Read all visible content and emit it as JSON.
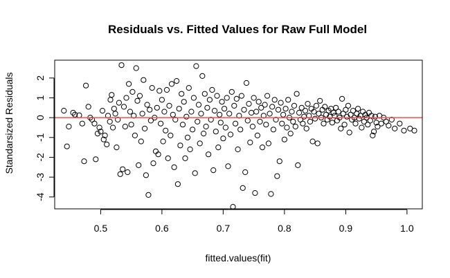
{
  "chart_data": {
    "type": "scatter",
    "title": "Residuals vs. Fitted Values for Raw Full Model",
    "xlabel": "fitted.values(fit)",
    "ylabel": "Standarsized Residuals",
    "xlim": [
      0.425,
      1.025
    ],
    "ylim": [
      -4.6,
      2.9
    ],
    "xticks": [
      0.5,
      0.6,
      0.7,
      0.8,
      0.9,
      1.0
    ],
    "xtick_labels": [
      "0.5",
      "0.6",
      "0.7",
      "0.8",
      "0.9",
      "1.0"
    ],
    "yticks": [
      -4,
      -3,
      -2,
      -1,
      0,
      1,
      2
    ],
    "ytick_labels": [
      "-4",
      "-3",
      "-2",
      "-1",
      "0",
      "1",
      "2"
    ],
    "reference_line": {
      "y": 0,
      "color": "#ff4d4d"
    },
    "marker": "open-circle",
    "grid": false,
    "points": [
      [
        0.44,
        0.35
      ],
      [
        0.445,
        -1.45
      ],
      [
        0.448,
        -0.45
      ],
      [
        0.455,
        0.25
      ],
      [
        0.458,
        0.15
      ],
      [
        0.465,
        0.12
      ],
      [
        0.47,
        -0.3
      ],
      [
        0.473,
        -2.2
      ],
      [
        0.476,
        1.62
      ],
      [
        0.48,
        0.55
      ],
      [
        0.483,
        0.0
      ],
      [
        0.486,
        -0.1
      ],
      [
        0.49,
        -0.3
      ],
      [
        0.492,
        -2.1
      ],
      [
        0.495,
        -0.8
      ],
      [
        0.498,
        -0.5
      ],
      [
        0.5,
        -0.7
      ],
      [
        0.503,
        0.35
      ],
      [
        0.505,
        -1.1
      ],
      [
        0.507,
        -0.9
      ],
      [
        0.51,
        -1.35
      ],
      [
        0.512,
        0.1
      ],
      [
        0.515,
        -0.2
      ],
      [
        0.516,
        0.9
      ],
      [
        0.518,
        1.15
      ],
      [
        0.52,
        -0.5
      ],
      [
        0.522,
        0.45
      ],
      [
        0.524,
        0.2
      ],
      [
        0.526,
        -1.5
      ],
      [
        0.528,
        -0.1
      ],
      [
        0.53,
        0.75
      ],
      [
        0.532,
        -2.85
      ],
      [
        0.534,
        2.65
      ],
      [
        0.536,
        -2.6
      ],
      [
        0.538,
        0.55
      ],
      [
        0.54,
        -0.45
      ],
      [
        0.542,
        1.0
      ],
      [
        0.544,
        -2.75
      ],
      [
        0.546,
        1.7
      ],
      [
        0.548,
        0.3
      ],
      [
        0.55,
        -0.35
      ],
      [
        0.552,
        1.3
      ],
      [
        0.554,
        0.1
      ],
      [
        0.556,
        -0.9
      ],
      [
        0.558,
        2.5
      ],
      [
        0.56,
        0.85
      ],
      [
        0.562,
        -2.4
      ],
      [
        0.564,
        1.1
      ],
      [
        0.566,
        -1.2
      ],
      [
        0.568,
        0.2
      ],
      [
        0.57,
        1.9
      ],
      [
        0.572,
        -0.55
      ],
      [
        0.574,
        -2.9
      ],
      [
        0.576,
        0.65
      ],
      [
        0.578,
        -3.9
      ],
      [
        0.58,
        0.4
      ],
      [
        0.582,
        -0.15
      ],
      [
        0.584,
        1.5
      ],
      [
        0.586,
        -2.3
      ],
      [
        0.588,
        0.0
      ],
      [
        0.59,
        -1.7
      ],
      [
        0.592,
        0.5
      ],
      [
        0.594,
        -1.85
      ],
      [
        0.596,
        1.35
      ],
      [
        0.598,
        -0.3
      ],
      [
        0.6,
        0.9
      ],
      [
        0.602,
        -1.2
      ],
      [
        0.604,
        0.3
      ],
      [
        0.606,
        -0.65
      ],
      [
        0.608,
        1.4
      ],
      [
        0.61,
        -2.05
      ],
      [
        0.612,
        0.6
      ],
      [
        0.614,
        -0.9
      ],
      [
        0.616,
        1.7
      ],
      [
        0.618,
        0.15
      ],
      [
        0.62,
        -2.5
      ],
      [
        0.622,
        -0.1
      ],
      [
        0.624,
        1.85
      ],
      [
        0.626,
        -3.35
      ],
      [
        0.628,
        0.45
      ],
      [
        0.63,
        -1.4
      ],
      [
        0.632,
        1.2
      ],
      [
        0.634,
        -0.35
      ],
      [
        0.636,
        0.8
      ],
      [
        0.638,
        -2.05
      ],
      [
        0.64,
        0.05
      ],
      [
        0.642,
        -1.0
      ],
      [
        0.644,
        1.5
      ],
      [
        0.646,
        -1.6
      ],
      [
        0.648,
        0.3
      ],
      [
        0.65,
        -0.6
      ],
      [
        0.652,
        1.0
      ],
      [
        0.654,
        -2.8
      ],
      [
        0.656,
        2.6
      ],
      [
        0.658,
        -0.2
      ],
      [
        0.66,
        0.65
      ],
      [
        0.662,
        -1.3
      ],
      [
        0.664,
        0.2
      ],
      [
        0.666,
        2.1
      ],
      [
        0.668,
        -0.8
      ],
      [
        0.67,
        1.2
      ],
      [
        0.672,
        -0.45
      ],
      [
        0.674,
        0.5
      ],
      [
        0.676,
        -1.85
      ],
      [
        0.678,
        0.9
      ],
      [
        0.68,
        -0.1
      ],
      [
        0.682,
        1.4
      ],
      [
        0.684,
        -2.65
      ],
      [
        0.686,
        0.35
      ],
      [
        0.688,
        -0.7
      ],
      [
        0.69,
        1.1
      ],
      [
        0.692,
        -1.5
      ],
      [
        0.694,
        0.15
      ],
      [
        0.696,
        -0.25
      ],
      [
        0.698,
        0.8
      ],
      [
        0.7,
        -1.05
      ],
      [
        0.702,
        0.45
      ],
      [
        0.704,
        -0.5
      ],
      [
        0.706,
        1.0
      ],
      [
        0.708,
        -2.45
      ],
      [
        0.71,
        0.2
      ],
      [
        0.712,
        -0.85
      ],
      [
        0.714,
        1.3
      ],
      [
        0.716,
        -4.5
      ],
      [
        0.718,
        0.6
      ],
      [
        0.72,
        -0.3
      ],
      [
        0.722,
        0.95
      ],
      [
        0.724,
        -1.6
      ],
      [
        0.726,
        0.1
      ],
      [
        0.728,
        -0.6
      ],
      [
        0.73,
        1.1
      ],
      [
        0.732,
        -3.55
      ],
      [
        0.734,
        0.4
      ],
      [
        0.736,
        -2.75
      ],
      [
        0.738,
        1.75
      ],
      [
        0.74,
        -0.15
      ],
      [
        0.742,
        0.7
      ],
      [
        0.744,
        -1.25
      ],
      [
        0.746,
        0.25
      ],
      [
        0.748,
        -0.45
      ],
      [
        0.75,
        1.0
      ],
      [
        0.752,
        -3.8
      ],
      [
        0.754,
        0.3
      ],
      [
        0.756,
        -0.9
      ],
      [
        0.758,
        0.8
      ],
      [
        0.76,
        -0.2
      ],
      [
        0.762,
        0.5
      ],
      [
        0.764,
        -1.5
      ],
      [
        0.766,
        0.1
      ],
      [
        0.768,
        0.65
      ],
      [
        0.77,
        -0.35
      ],
      [
        0.772,
        1.1
      ],
      [
        0.774,
        -1.3
      ],
      [
        0.776,
        0.2
      ],
      [
        0.778,
        -3.85
      ],
      [
        0.78,
        0.55
      ],
      [
        0.782,
        -0.6
      ],
      [
        0.784,
        0.9
      ],
      [
        0.786,
        -0.1
      ],
      [
        0.788,
        -2.95
      ],
      [
        0.79,
        0.4
      ],
      [
        0.792,
        -2.2
      ],
      [
        0.794,
        0.75
      ],
      [
        0.796,
        -0.3
      ],
      [
        0.798,
        0.15
      ],
      [
        0.8,
        -1.1
      ],
      [
        0.802,
        0.45
      ],
      [
        0.804,
        -0.5
      ],
      [
        0.806,
        0.9
      ],
      [
        0.808,
        0.0
      ],
      [
        0.81,
        -0.8
      ],
      [
        0.812,
        0.3
      ],
      [
        0.814,
        -0.2
      ],
      [
        0.816,
        0.6
      ],
      [
        0.818,
        -0.45
      ],
      [
        0.82,
        1.2
      ],
      [
        0.822,
        -2.4
      ],
      [
        0.824,
        0.25
      ],
      [
        0.826,
        -0.1
      ],
      [
        0.828,
        0.5
      ],
      [
        0.83,
        -0.3
      ],
      [
        0.832,
        0.05
      ],
      [
        0.834,
        0.35
      ],
      [
        0.836,
        -0.55
      ],
      [
        0.838,
        0.7
      ],
      [
        0.84,
        0.1
      ],
      [
        0.842,
        -0.2
      ],
      [
        0.844,
        0.45
      ],
      [
        0.846,
        -1.2
      ],
      [
        0.848,
        0.3
      ],
      [
        0.85,
        -0.05
      ],
      [
        0.852,
        0.6
      ],
      [
        0.854,
        -1.3
      ],
      [
        0.856,
        0.2
      ],
      [
        0.858,
        0.85
      ],
      [
        0.86,
        0.0
      ],
      [
        0.862,
        0.4
      ],
      [
        0.864,
        -0.3
      ],
      [
        0.866,
        0.55
      ],
      [
        0.868,
        0.15
      ],
      [
        0.87,
        -0.1
      ],
      [
        0.872,
        0.35
      ],
      [
        0.874,
        0.05
      ],
      [
        0.876,
        0.45
      ],
      [
        0.878,
        -0.25
      ],
      [
        0.88,
        0.25
      ],
      [
        0.882,
        0.1
      ],
      [
        0.884,
        0.5
      ],
      [
        0.886,
        -0.15
      ],
      [
        0.888,
        0.3
      ],
      [
        0.89,
        0.0
      ],
      [
        0.892,
        -0.55
      ],
      [
        0.894,
        0.95
      ],
      [
        0.896,
        0.2
      ],
      [
        0.898,
        -0.35
      ],
      [
        0.9,
        0.4
      ],
      [
        0.902,
        0.05
      ],
      [
        0.904,
        0.6
      ],
      [
        0.906,
        -0.75
      ],
      [
        0.908,
        0.15
      ],
      [
        0.91,
        -0.1
      ],
      [
        0.912,
        0.35
      ],
      [
        0.914,
        0.0
      ],
      [
        0.916,
        -0.3
      ],
      [
        0.918,
        0.2
      ],
      [
        0.92,
        0.45
      ],
      [
        0.922,
        -0.05
      ],
      [
        0.924,
        0.1
      ],
      [
        0.926,
        -0.5
      ],
      [
        0.928,
        0.3
      ],
      [
        0.93,
        -0.2
      ],
      [
        0.932,
        0.15
      ],
      [
        0.934,
        0.0
      ],
      [
        0.936,
        -0.35
      ],
      [
        0.938,
        0.25
      ],
      [
        0.94,
        -0.15
      ],
      [
        0.942,
        0.1
      ],
      [
        0.944,
        -0.9
      ],
      [
        0.946,
        -0.7
      ],
      [
        0.948,
        0.05
      ],
      [
        0.95,
        -0.25
      ],
      [
        0.952,
        -0.45
      ],
      [
        0.955,
        0.1
      ],
      [
        0.958,
        -0.3
      ],
      [
        0.962,
        0.0
      ],
      [
        0.966,
        -0.2
      ],
      [
        0.97,
        -0.4
      ],
      [
        0.975,
        -0.1
      ],
      [
        0.98,
        -0.55
      ],
      [
        0.988,
        -0.3
      ],
      [
        0.995,
        -0.65
      ],
      [
        1.005,
        -0.55
      ],
      [
        1.012,
        -0.65
      ]
    ]
  }
}
